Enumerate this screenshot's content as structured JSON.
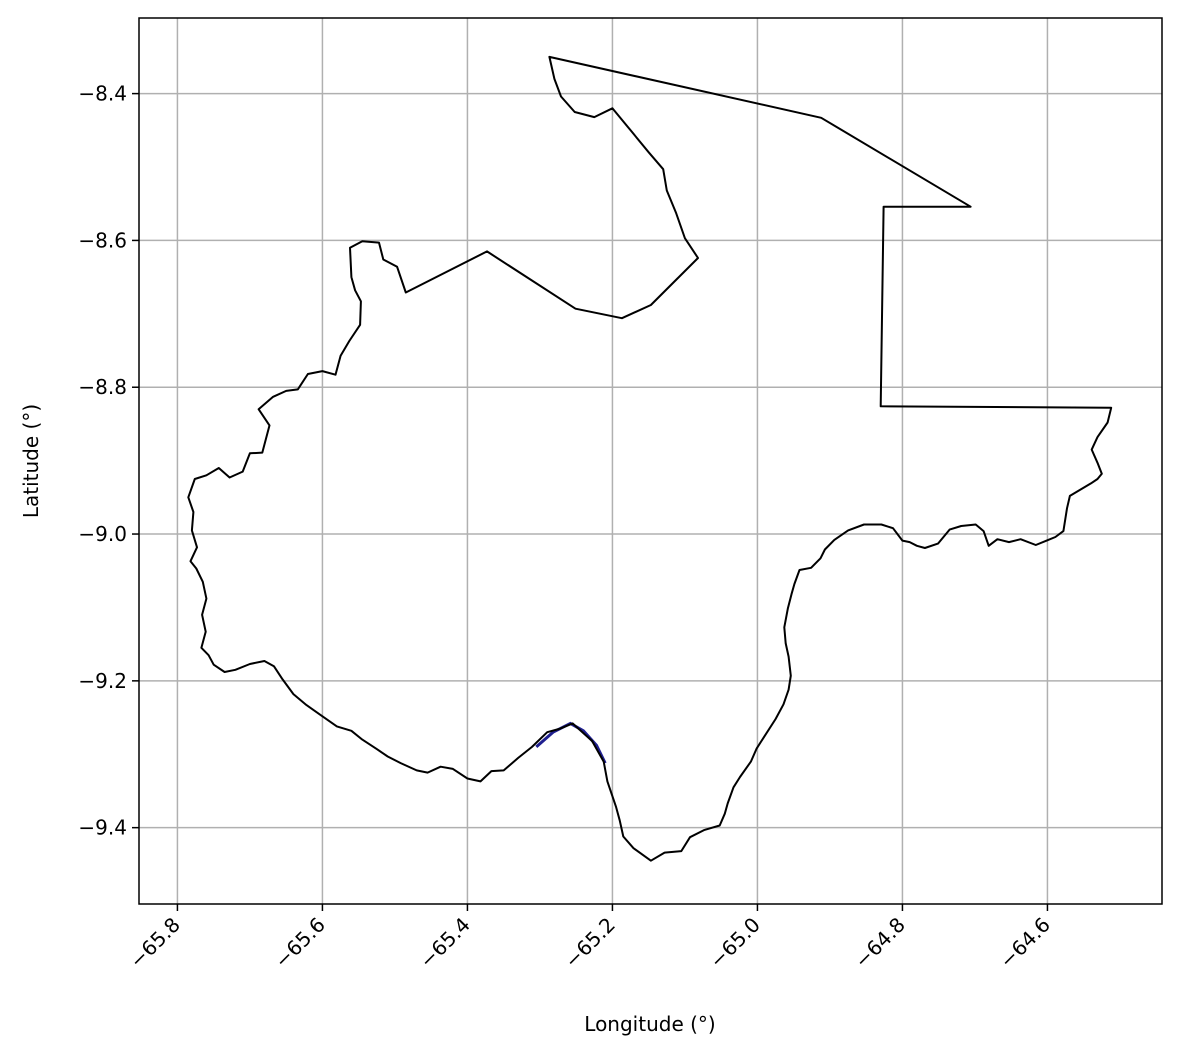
{
  "chart_data": {
    "type": "map",
    "xlabel": "Longitude (°)",
    "ylabel": "Latitude (°)",
    "xlim": [
      -65.853,
      -64.442
    ],
    "ylim": [
      -9.504,
      -8.297
    ],
    "grid": true,
    "x_ticks": [
      {
        "value": -65.8,
        "label": "−65.8"
      },
      {
        "value": -65.6,
        "label": "−65.6"
      },
      {
        "value": -65.4,
        "label": "−65.4"
      },
      {
        "value": -65.2,
        "label": "−65.2"
      },
      {
        "value": -65.0,
        "label": "−65.0"
      },
      {
        "value": -64.8,
        "label": "−64.8"
      },
      {
        "value": -64.6,
        "label": "−64.6"
      }
    ],
    "y_ticks": [
      {
        "value": -8.4,
        "label": "−8.4"
      },
      {
        "value": -8.6,
        "label": "−8.6"
      },
      {
        "value": -8.8,
        "label": "−8.8"
      },
      {
        "value": -9.0,
        "label": "−9.0"
      },
      {
        "value": -9.2,
        "label": "−9.2"
      },
      {
        "value": -9.4,
        "label": "−9.4"
      }
    ],
    "colors": {
      "outline": "#000000",
      "grid": "#b0b0b0",
      "river": "#1f1f8f"
    },
    "boundary": [
      [
        -65.287,
        -8.35
      ],
      [
        -64.912,
        -8.433
      ],
      [
        -64.706,
        -8.554
      ],
      [
        -64.826,
        -8.554
      ],
      [
        -64.83,
        -8.826
      ],
      [
        -64.512,
        -8.828
      ],
      [
        -64.517,
        -8.848
      ],
      [
        -64.531,
        -8.868
      ],
      [
        -64.539,
        -8.885
      ],
      [
        -64.531,
        -8.903
      ],
      [
        -64.525,
        -8.918
      ],
      [
        -64.531,
        -8.925
      ],
      [
        -64.54,
        -8.931
      ],
      [
        -64.569,
        -8.948
      ],
      [
        -64.573,
        -8.965
      ],
      [
        -64.578,
        -8.996
      ],
      [
        -64.589,
        -9.004
      ],
      [
        -64.601,
        -9.009
      ],
      [
        -64.616,
        -9.015
      ],
      [
        -64.637,
        -9.007
      ],
      [
        -64.653,
        -9.011
      ],
      [
        -64.669,
        -9.007
      ],
      [
        -64.681,
        -9.016
      ],
      [
        -64.688,
        -8.996
      ],
      [
        -64.699,
        -8.987
      ],
      [
        -64.719,
        -8.989
      ],
      [
        -64.735,
        -8.994
      ],
      [
        -64.751,
        -9.013
      ],
      [
        -64.769,
        -9.019
      ],
      [
        -64.78,
        -9.016
      ],
      [
        -64.79,
        -9.011
      ],
      [
        -64.8,
        -9.009
      ],
      [
        -64.813,
        -8.992
      ],
      [
        -64.829,
        -8.987
      ],
      [
        -64.853,
        -8.987
      ],
      [
        -64.875,
        -8.995
      ],
      [
        -64.894,
        -9.008
      ],
      [
        -64.907,
        -9.021
      ],
      [
        -64.913,
        -9.033
      ],
      [
        -64.926,
        -9.046
      ],
      [
        -64.942,
        -9.049
      ],
      [
        -64.949,
        -9.068
      ],
      [
        -64.953,
        -9.082
      ],
      [
        -64.958,
        -9.101
      ],
      [
        -64.963,
        -9.127
      ],
      [
        -64.961,
        -9.149
      ],
      [
        -64.957,
        -9.167
      ],
      [
        -64.954,
        -9.193
      ],
      [
        -64.957,
        -9.212
      ],
      [
        -64.964,
        -9.232
      ],
      [
        -64.975,
        -9.252
      ],
      [
        -64.99,
        -9.275
      ],
      [
        -65.001,
        -9.292
      ],
      [
        -65.009,
        -9.31
      ],
      [
        -65.024,
        -9.331
      ],
      [
        -65.033,
        -9.345
      ],
      [
        -65.041,
        -9.367
      ],
      [
        -65.045,
        -9.381
      ],
      [
        -65.052,
        -9.397
      ],
      [
        -65.073,
        -9.403
      ],
      [
        -65.093,
        -9.413
      ],
      [
        -65.105,
        -9.432
      ],
      [
        -65.128,
        -9.434
      ],
      [
        -65.147,
        -9.445
      ],
      [
        -65.171,
        -9.428
      ],
      [
        -65.185,
        -9.412
      ],
      [
        -65.19,
        -9.39
      ],
      [
        -65.195,
        -9.372
      ],
      [
        -65.207,
        -9.337
      ],
      [
        -65.212,
        -9.31
      ],
      [
        -65.228,
        -9.282
      ],
      [
        -65.255,
        -9.258
      ],
      [
        -65.272,
        -9.265
      ],
      [
        -65.29,
        -9.27
      ],
      [
        -65.311,
        -9.29
      ],
      [
        -65.33,
        -9.305
      ],
      [
        -65.35,
        -9.322
      ],
      [
        -65.367,
        -9.323
      ],
      [
        -65.382,
        -9.337
      ],
      [
        -65.4,
        -9.333
      ],
      [
        -65.42,
        -9.32
      ],
      [
        -65.437,
        -9.317
      ],
      [
        -65.455,
        -9.325
      ],
      [
        -65.47,
        -9.322
      ],
      [
        -65.492,
        -9.312
      ],
      [
        -65.51,
        -9.303
      ],
      [
        -65.525,
        -9.293
      ],
      [
        -65.545,
        -9.28
      ],
      [
        -65.56,
        -9.268
      ],
      [
        -65.58,
        -9.262
      ],
      [
        -65.602,
        -9.247
      ],
      [
        -65.622,
        -9.233
      ],
      [
        -65.64,
        -9.218
      ],
      [
        -65.655,
        -9.198
      ],
      [
        -65.667,
        -9.18
      ],
      [
        -65.68,
        -9.173
      ],
      [
        -65.7,
        -9.177
      ],
      [
        -65.72,
        -9.185
      ],
      [
        -65.735,
        -9.188
      ],
      [
        -65.75,
        -9.178
      ],
      [
        -65.757,
        -9.165
      ],
      [
        -65.767,
        -9.155
      ],
      [
        -65.761,
        -9.133
      ],
      [
        -65.766,
        -9.11
      ],
      [
        -65.76,
        -9.088
      ],
      [
        -65.765,
        -9.065
      ],
      [
        -65.774,
        -9.047
      ],
      [
        -65.782,
        -9.037
      ],
      [
        -65.773,
        -9.018
      ],
      [
        -65.78,
        -8.995
      ],
      [
        -65.778,
        -8.97
      ],
      [
        -65.785,
        -8.95
      ],
      [
        -65.776,
        -8.925
      ],
      [
        -65.76,
        -8.92
      ],
      [
        -65.743,
        -8.91
      ],
      [
        -65.728,
        -8.923
      ],
      [
        -65.71,
        -8.915
      ],
      [
        -65.7,
        -8.89
      ],
      [
        -65.683,
        -8.889
      ],
      [
        -65.673,
        -8.852
      ],
      [
        -65.688,
        -8.83
      ],
      [
        -65.668,
        -8.813
      ],
      [
        -65.65,
        -8.805
      ],
      [
        -65.634,
        -8.803
      ],
      [
        -65.62,
        -8.782
      ],
      [
        -65.6,
        -8.778
      ],
      [
        -65.582,
        -8.783
      ],
      [
        -65.575,
        -8.757
      ],
      [
        -65.563,
        -8.737
      ],
      [
        -65.548,
        -8.715
      ],
      [
        -65.547,
        -8.683
      ],
      [
        -65.555,
        -8.668
      ],
      [
        -65.56,
        -8.65
      ],
      [
        -65.562,
        -8.61
      ],
      [
        -65.545,
        -8.601
      ],
      [
        -65.522,
        -8.603
      ],
      [
        -65.516,
        -8.626
      ],
      [
        -65.497,
        -8.636
      ],
      [
        -65.485,
        -8.671
      ],
      [
        -65.373,
        -8.615
      ],
      [
        -65.251,
        -8.693
      ],
      [
        -65.187,
        -8.706
      ],
      [
        -65.147,
        -8.688
      ],
      [
        -65.082,
        -8.624
      ],
      [
        -65.1,
        -8.597
      ],
      [
        -65.112,
        -8.563
      ],
      [
        -65.125,
        -8.532
      ],
      [
        -65.13,
        -8.503
      ],
      [
        -65.15,
        -8.48
      ],
      [
        -65.175,
        -8.45
      ],
      [
        -65.2,
        -8.42
      ],
      [
        -65.225,
        -8.432
      ],
      [
        -65.252,
        -8.425
      ],
      [
        -65.271,
        -8.404
      ],
      [
        -65.28,
        -8.38
      ],
      [
        -65.287,
        -8.35
      ]
    ],
    "river": [
      [
        -65.305,
        -9.29
      ],
      [
        -65.282,
        -9.27
      ],
      [
        -65.258,
        -9.258
      ],
      [
        -65.24,
        -9.268
      ],
      [
        -65.222,
        -9.288
      ],
      [
        -65.21,
        -9.312
      ]
    ]
  }
}
